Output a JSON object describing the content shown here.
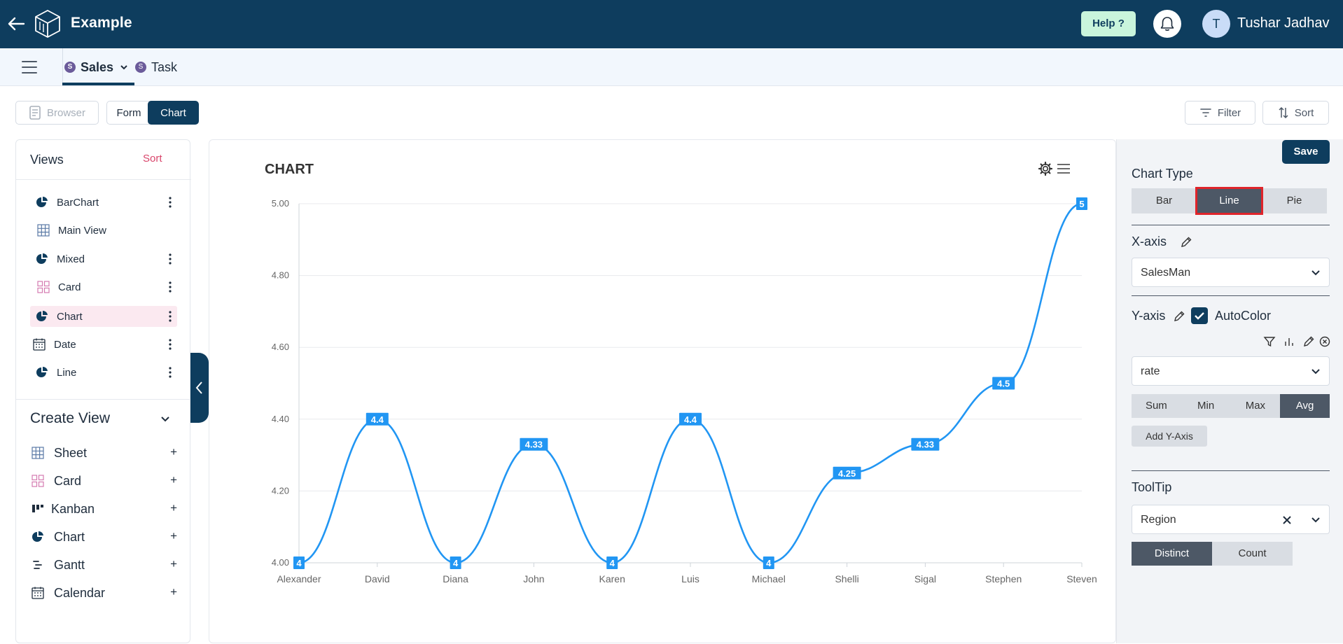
{
  "app": {
    "title": "Example",
    "help_label": "Help ?",
    "user_initial": "T",
    "user_name": "Tushar Jadhav"
  },
  "tabs": [
    {
      "badge": "S",
      "label": "Sales",
      "active": true
    },
    {
      "badge": "S",
      "label": "Task",
      "active": false
    }
  ],
  "toolbar": {
    "browser_label": "Browser",
    "form_label": "Form",
    "chart_label": "Chart",
    "filter_label": "Filter",
    "sort_label": "Sort"
  },
  "views": {
    "title": "Views",
    "sort_label": "Sort",
    "items": [
      {
        "label": "BarChart",
        "icon": "pie-icon"
      },
      {
        "label": "Main View",
        "icon": "grid-icon"
      },
      {
        "label": "Mixed",
        "icon": "pie-icon"
      },
      {
        "label": "Card",
        "icon": "card-icon"
      },
      {
        "label": "Chart",
        "icon": "pie-icon",
        "selected": true
      },
      {
        "label": "Date",
        "icon": "calendar-icon"
      },
      {
        "label": "Line",
        "icon": "pie-icon"
      }
    ]
  },
  "create_view": {
    "title": "Create View",
    "items": [
      {
        "label": "Sheet",
        "icon": "grid-icon"
      },
      {
        "label": "Card",
        "icon": "card-icon"
      },
      {
        "label": "Kanban",
        "icon": "kanban-icon"
      },
      {
        "label": "Chart",
        "icon": "pie-icon"
      },
      {
        "label": "Gantt",
        "icon": "gantt-icon"
      },
      {
        "label": "Calendar",
        "icon": "calendar-icon"
      }
    ],
    "plus": "+"
  },
  "chart_data": {
    "type": "line",
    "title": "CHART",
    "categories": [
      "Alexander",
      "David",
      "Diana",
      "John",
      "Karen",
      "Luis",
      "Michael",
      "Shelli",
      "Sigal",
      "Stephen",
      "Steven"
    ],
    "values": [
      4,
      4.4,
      4,
      4.33,
      4,
      4.4,
      4,
      4.25,
      4.33,
      4.5,
      5
    ],
    "data_labels": [
      "4",
      "4.4",
      "4",
      "4.33",
      "4",
      "4.4",
      "4",
      "4.25",
      "4.33",
      "4.5",
      "5"
    ],
    "y_ticks": [
      "4.00",
      "4.20",
      "4.40",
      "4.60",
      "4.80",
      "5.00"
    ],
    "ylim": [
      4,
      5
    ],
    "grid": true,
    "color": "#2196f3"
  },
  "settings": {
    "save_label": "Save",
    "chart_type_label": "Chart Type",
    "chart_types": [
      {
        "label": "Bar"
      },
      {
        "label": "Line",
        "selected": true
      },
      {
        "label": "Pie"
      }
    ],
    "x_axis_label": "X-axis",
    "x_axis_value": "SalesMan",
    "y_axis_label": "Y-axis",
    "autocolor_label": "AutoColor",
    "y_axis_value": "rate",
    "aggregations": [
      {
        "label": "Sum"
      },
      {
        "label": "Min"
      },
      {
        "label": "Max"
      },
      {
        "label": "Avg",
        "selected": true
      }
    ],
    "add_y_label": "Add Y-Axis",
    "tooltip_label": "ToolTip",
    "tooltip_value": "Region",
    "tooltip_modes": [
      {
        "label": "Distinct",
        "selected": true
      },
      {
        "label": "Count"
      }
    ]
  }
}
